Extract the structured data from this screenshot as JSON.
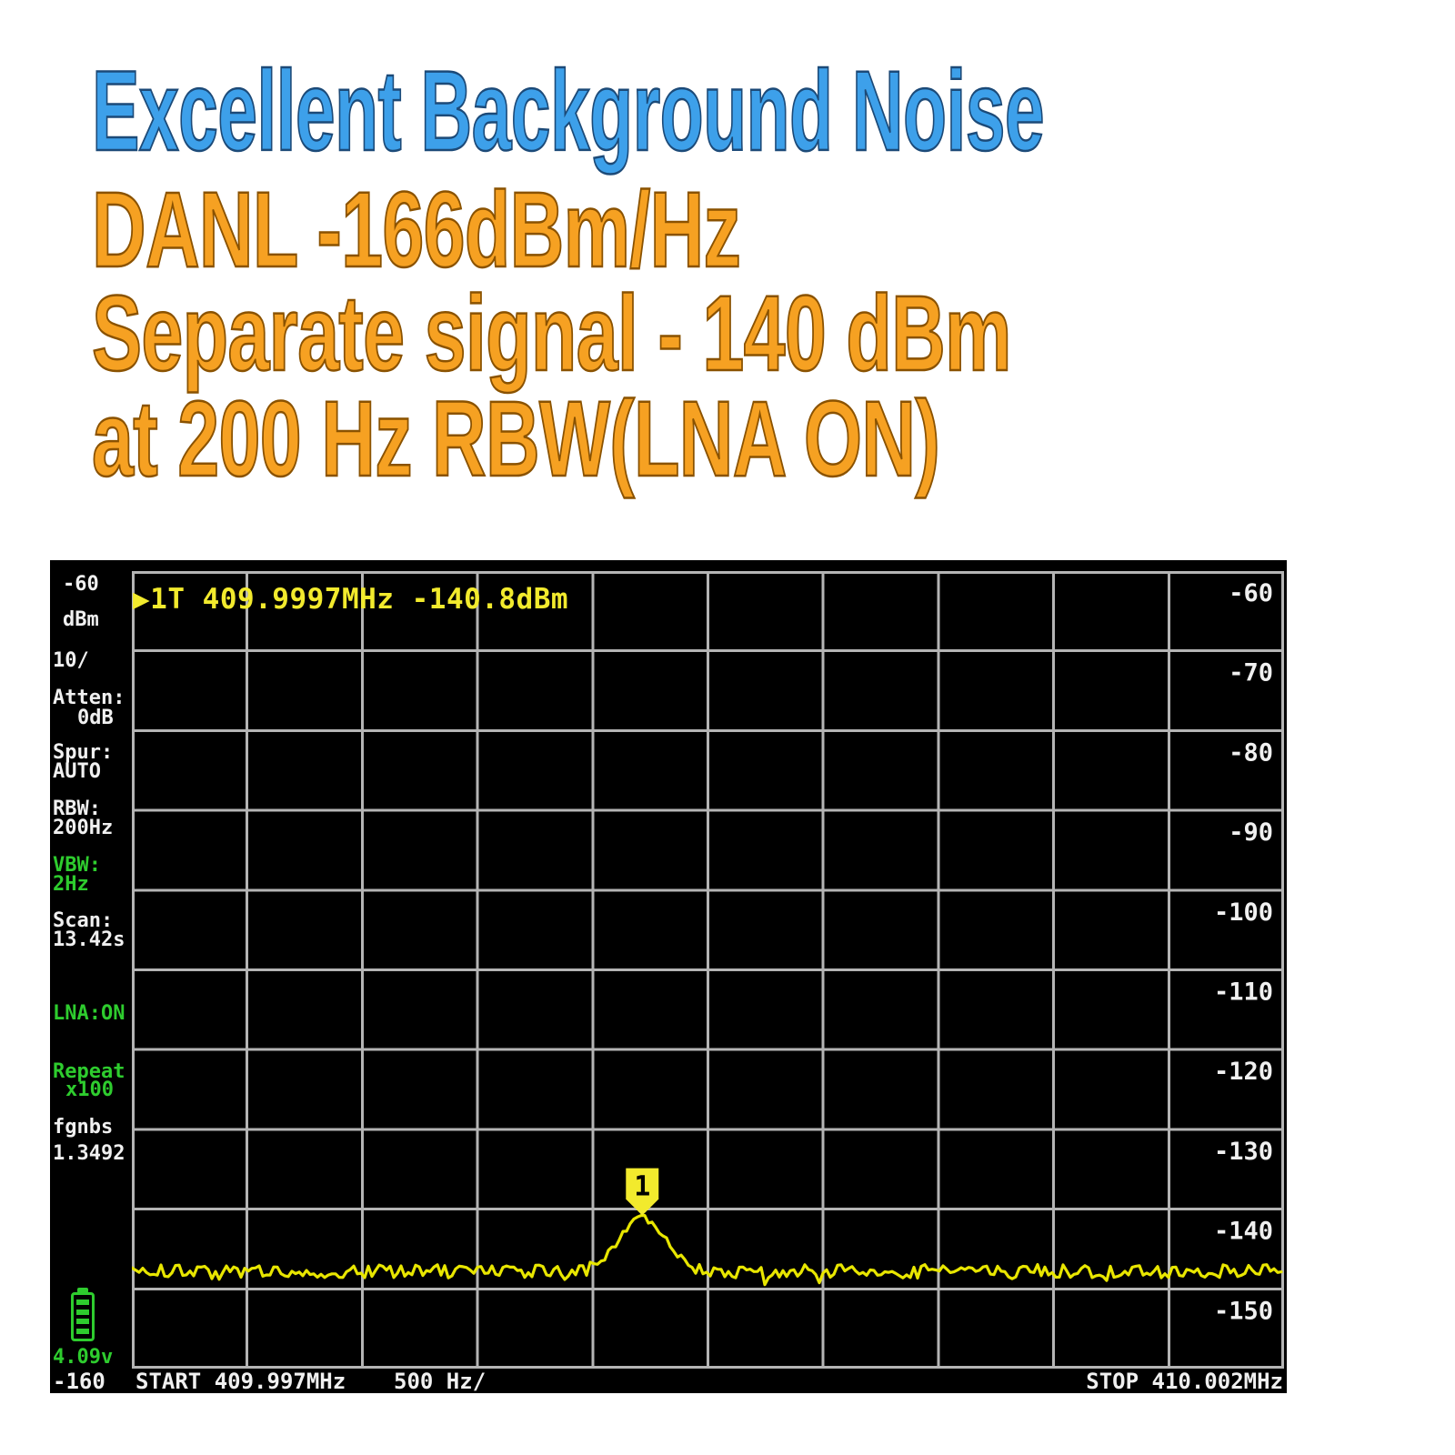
{
  "header": {
    "title": "Excellent Background Noise",
    "lines": [
      "DANL -166dBm/Hz",
      "Separate signal - 140 dBm",
      "at 200 Hz RBW(LNA ON)"
    ]
  },
  "screen": {
    "marker_readout": "▶1T 409.9997MHz -140.8dBm",
    "sidebar": {
      "ref_top": "-60",
      "unit": "dBm",
      "scale": "10/",
      "atten_label": "Atten:",
      "atten_value": "0dB",
      "spur_label": "Spur:",
      "spur_value": "AUTO",
      "rbw_label": "RBW:",
      "rbw_value": "200Hz",
      "vbw_label": "VBW:",
      "vbw_value": "2Hz",
      "scan_label": "Scan:",
      "scan_value": "13.42s",
      "lna": "LNA:ON",
      "repeat_label": "Repeat",
      "repeat_value": "x100",
      "extra_label": "fgnbs",
      "extra_value": "1.3492",
      "battery_voltage": "4.09v",
      "ref_bottom": "-160"
    },
    "bottom": {
      "start": "START 409.997MHz",
      "per_div": "500 Hz/",
      "stop": "STOP 410.002MHz"
    }
  },
  "chart_data": {
    "type": "line",
    "x_range_mhz": [
      409.997,
      410.002
    ],
    "x_per_div": "500 Hz/",
    "x_divisions": 10,
    "ylabel": "dBm",
    "ylim": [
      -160,
      -60
    ],
    "y_per_div_db": 10,
    "y_divisions": 10,
    "y_ticks_right": [
      -60,
      -70,
      -80,
      -90,
      -100,
      -110,
      -120,
      -130,
      -140,
      -150
    ],
    "grid": "on",
    "series": [
      {
        "name": "trace1",
        "color": "#e8e600",
        "noise_floor_dbm": -147.8,
        "noise_jitter_db": 0.85,
        "peak": {
          "marker_id": "1",
          "freq_mhz": 409.9997,
          "level_dbm": -140.8,
          "center_fraction": 0.443,
          "sigma_fraction": 0.019
        }
      }
    ],
    "markers": [
      {
        "id": "1",
        "freq": "409.9997MHz",
        "level": "-140.8dBm"
      }
    ]
  },
  "palette": {
    "title_blue": "#3da0ea",
    "accent_orange": "#f6a122",
    "screen_bg": "#000000",
    "grid_gray": "#b4b4b4",
    "text_white": "#f0f0f0",
    "text_green": "#2ecc2e",
    "trace_yellow": "#e8e600",
    "marker_yellow": "#f2ea2d"
  }
}
